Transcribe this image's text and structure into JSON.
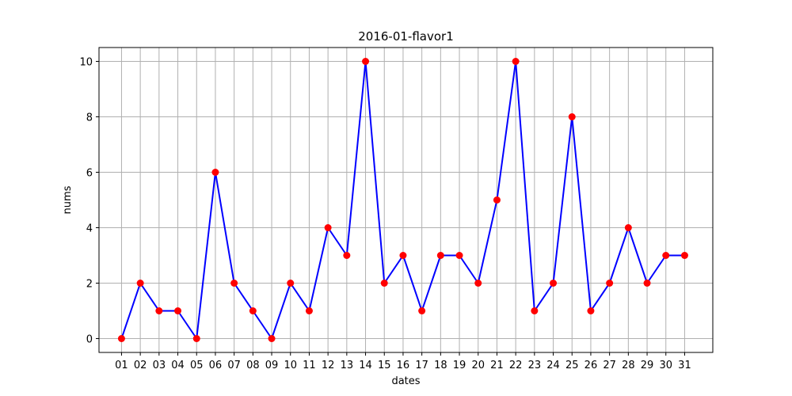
{
  "chart_data": {
    "type": "line",
    "title": "2016-01-flavor1",
    "xlabel": "dates",
    "ylabel": "nums",
    "categories": [
      "01",
      "02",
      "03",
      "04",
      "05",
      "06",
      "07",
      "08",
      "09",
      "10",
      "11",
      "12",
      "13",
      "14",
      "15",
      "16",
      "17",
      "18",
      "19",
      "20",
      "21",
      "22",
      "23",
      "24",
      "25",
      "26",
      "27",
      "28",
      "29",
      "30",
      "31"
    ],
    "series": [
      {
        "values": [
          0,
          2,
          1,
          1,
          0,
          6,
          2,
          1,
          0,
          2,
          1,
          4,
          3,
          10,
          2,
          3,
          1,
          3,
          3,
          2,
          5,
          10,
          1,
          2,
          8,
          1,
          2,
          4,
          2,
          3,
          3
        ],
        "line_color": "#0000ff",
        "marker_color": "#ff0000"
      }
    ],
    "yticks": [
      0,
      2,
      4,
      6,
      8,
      10
    ],
    "ylim": [
      -0.5,
      10.5
    ],
    "grid": true,
    "legend": "none"
  }
}
